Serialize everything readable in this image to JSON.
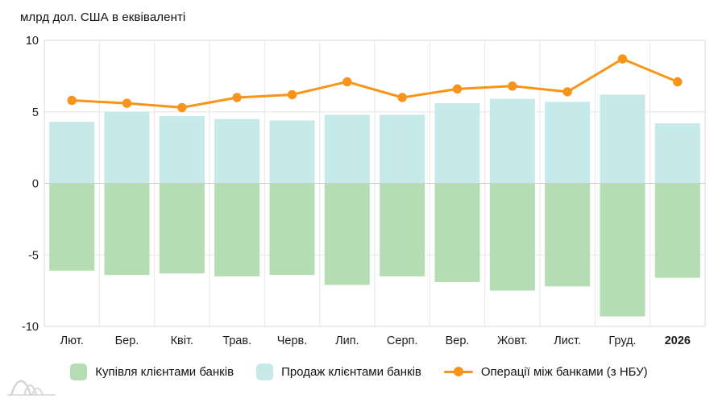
{
  "chart": {
    "title": "млрд дол. США в еквіваленті",
    "legend": [
      {
        "label": "Купівля клієнтами банків",
        "marker": "square",
        "color": "#b5ddb4"
      },
      {
        "label": "Продаж клієнтами банків",
        "marker": "square",
        "color": "#c6e9ea"
      },
      {
        "label": "Операції між банками (з НБУ)",
        "marker": "line-dot",
        "color": "#f8941a"
      }
    ]
  },
  "chart_data": {
    "type": "bar",
    "subtype": "stacked-diverging-bars-with-line",
    "title": "млрд дол. США в еквіваленті",
    "categories": [
      "Лют.",
      "Бер.",
      "Квіт.",
      "Трав.",
      "Черв.",
      "Лип.",
      "Серп.",
      "Вер.",
      "Жовт.",
      "Лист.",
      "Груд.",
      "2026"
    ],
    "last_category_bold": true,
    "series": [
      {
        "name": "Купівля клієнтами банків",
        "type": "bar",
        "color": "#b5ddb4",
        "values": [
          -6.1,
          -6.4,
          -6.3,
          -6.5,
          -6.4,
          -7.1,
          -6.5,
          -6.9,
          -7.5,
          -7.2,
          -9.3,
          -6.6
        ]
      },
      {
        "name": "Продаж клієнтами банків",
        "type": "bar",
        "color": "#c6e9ea",
        "values": [
          4.3,
          5.0,
          4.7,
          4.5,
          4.4,
          4.8,
          4.8,
          5.6,
          5.9,
          5.7,
          6.2,
          4.2
        ]
      },
      {
        "name": "Операції між банками (з НБУ)",
        "type": "line",
        "color": "#f8941a",
        "values": [
          5.8,
          5.6,
          5.3,
          6.0,
          6.2,
          7.1,
          6.0,
          6.6,
          6.8,
          6.4,
          8.7,
          7.1
        ]
      }
    ],
    "xlabel": "",
    "ylabel": "млрд дол. США в еквіваленті",
    "ylim": [
      -10,
      10
    ],
    "yticks": [
      10,
      5,
      0,
      -5,
      -10
    ],
    "grid": true,
    "legend_position": "bottom",
    "colors": {
      "axis_text": "#1c1c1c",
      "grid_line": "#e6e6e6",
      "frame_line": "#d9d9d9",
      "zero_line": "#cecece",
      "background": "#ffffff",
      "logo_gray": "#d6d6d6"
    }
  }
}
